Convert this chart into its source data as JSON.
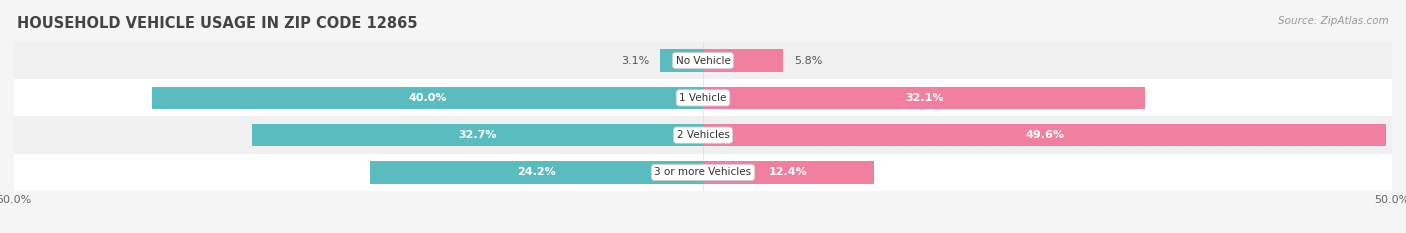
{
  "title": "HOUSEHOLD VEHICLE USAGE IN ZIP CODE 12865",
  "source": "Source: ZipAtlas.com",
  "categories": [
    "No Vehicle",
    "1 Vehicle",
    "2 Vehicles",
    "3 or more Vehicles"
  ],
  "owner_values": [
    3.1,
    40.0,
    32.7,
    24.2
  ],
  "renter_values": [
    5.8,
    32.1,
    49.6,
    12.4
  ],
  "owner_color": "#5bbcbf",
  "renter_color": "#f07fa0",
  "xlim": 50.0,
  "bar_height": 0.6,
  "background_color": "#f5f5f5",
  "row_bg_light": "#f0f0f0",
  "row_bg_white": "#ffffff",
  "title_fontsize": 10.5,
  "label_fontsize": 8.0,
  "tick_fontsize": 8,
  "source_fontsize": 7.5
}
